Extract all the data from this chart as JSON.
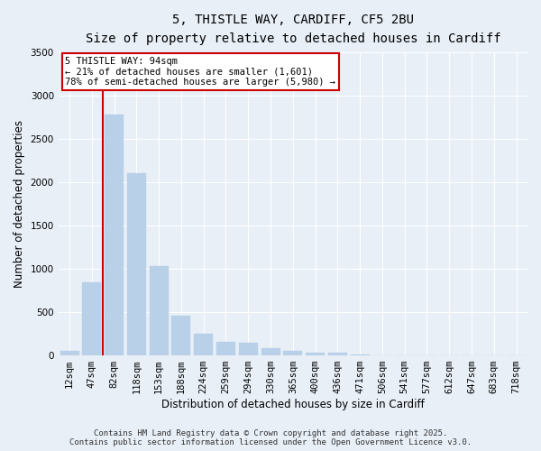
{
  "title_line1": "5, THISTLE WAY, CARDIFF, CF5 2BU",
  "title_line2": "Size of property relative to detached houses in Cardiff",
  "xlabel": "Distribution of detached houses by size in Cardiff",
  "ylabel": "Number of detached properties",
  "categories": [
    "12sqm",
    "47sqm",
    "82sqm",
    "118sqm",
    "153sqm",
    "188sqm",
    "224sqm",
    "259sqm",
    "294sqm",
    "330sqm",
    "365sqm",
    "400sqm",
    "436sqm",
    "471sqm",
    "506sqm",
    "541sqm",
    "577sqm",
    "612sqm",
    "647sqm",
    "683sqm",
    "718sqm"
  ],
  "values": [
    50,
    840,
    2780,
    2100,
    1030,
    460,
    250,
    155,
    145,
    80,
    55,
    30,
    30,
    15,
    5,
    3,
    2,
    2,
    1,
    1,
    1
  ],
  "bar_color": "#b8d0e8",
  "bar_edge_color": "#b8d0e8",
  "vline_x": 2.0,
  "vline_color": "#cc0000",
  "ylim": [
    0,
    3500
  ],
  "yticks": [
    0,
    500,
    1000,
    1500,
    2000,
    2500,
    3000,
    3500
  ],
  "annotation_title": "5 THISTLE WAY: 94sqm",
  "annotation_line1": "← 21% of detached houses are smaller (1,601)",
  "annotation_line2": "78% of semi-detached houses are larger (5,980) →",
  "annotation_box_facecolor": "#ffffff",
  "annotation_box_edgecolor": "#cc0000",
  "footer_line1": "Contains HM Land Registry data © Crown copyright and database right 2025.",
  "footer_line2": "Contains public sector information licensed under the Open Government Licence v3.0.",
  "bg_color": "#e8eff7",
  "plot_bg_color": "#e8eff7",
  "grid_color": "#ffffff",
  "title_fontsize": 10,
  "subtitle_fontsize": 9.5,
  "axis_label_fontsize": 8.5,
  "tick_fontsize": 7.5,
  "annotation_fontsize": 7.5,
  "footer_fontsize": 6.5
}
